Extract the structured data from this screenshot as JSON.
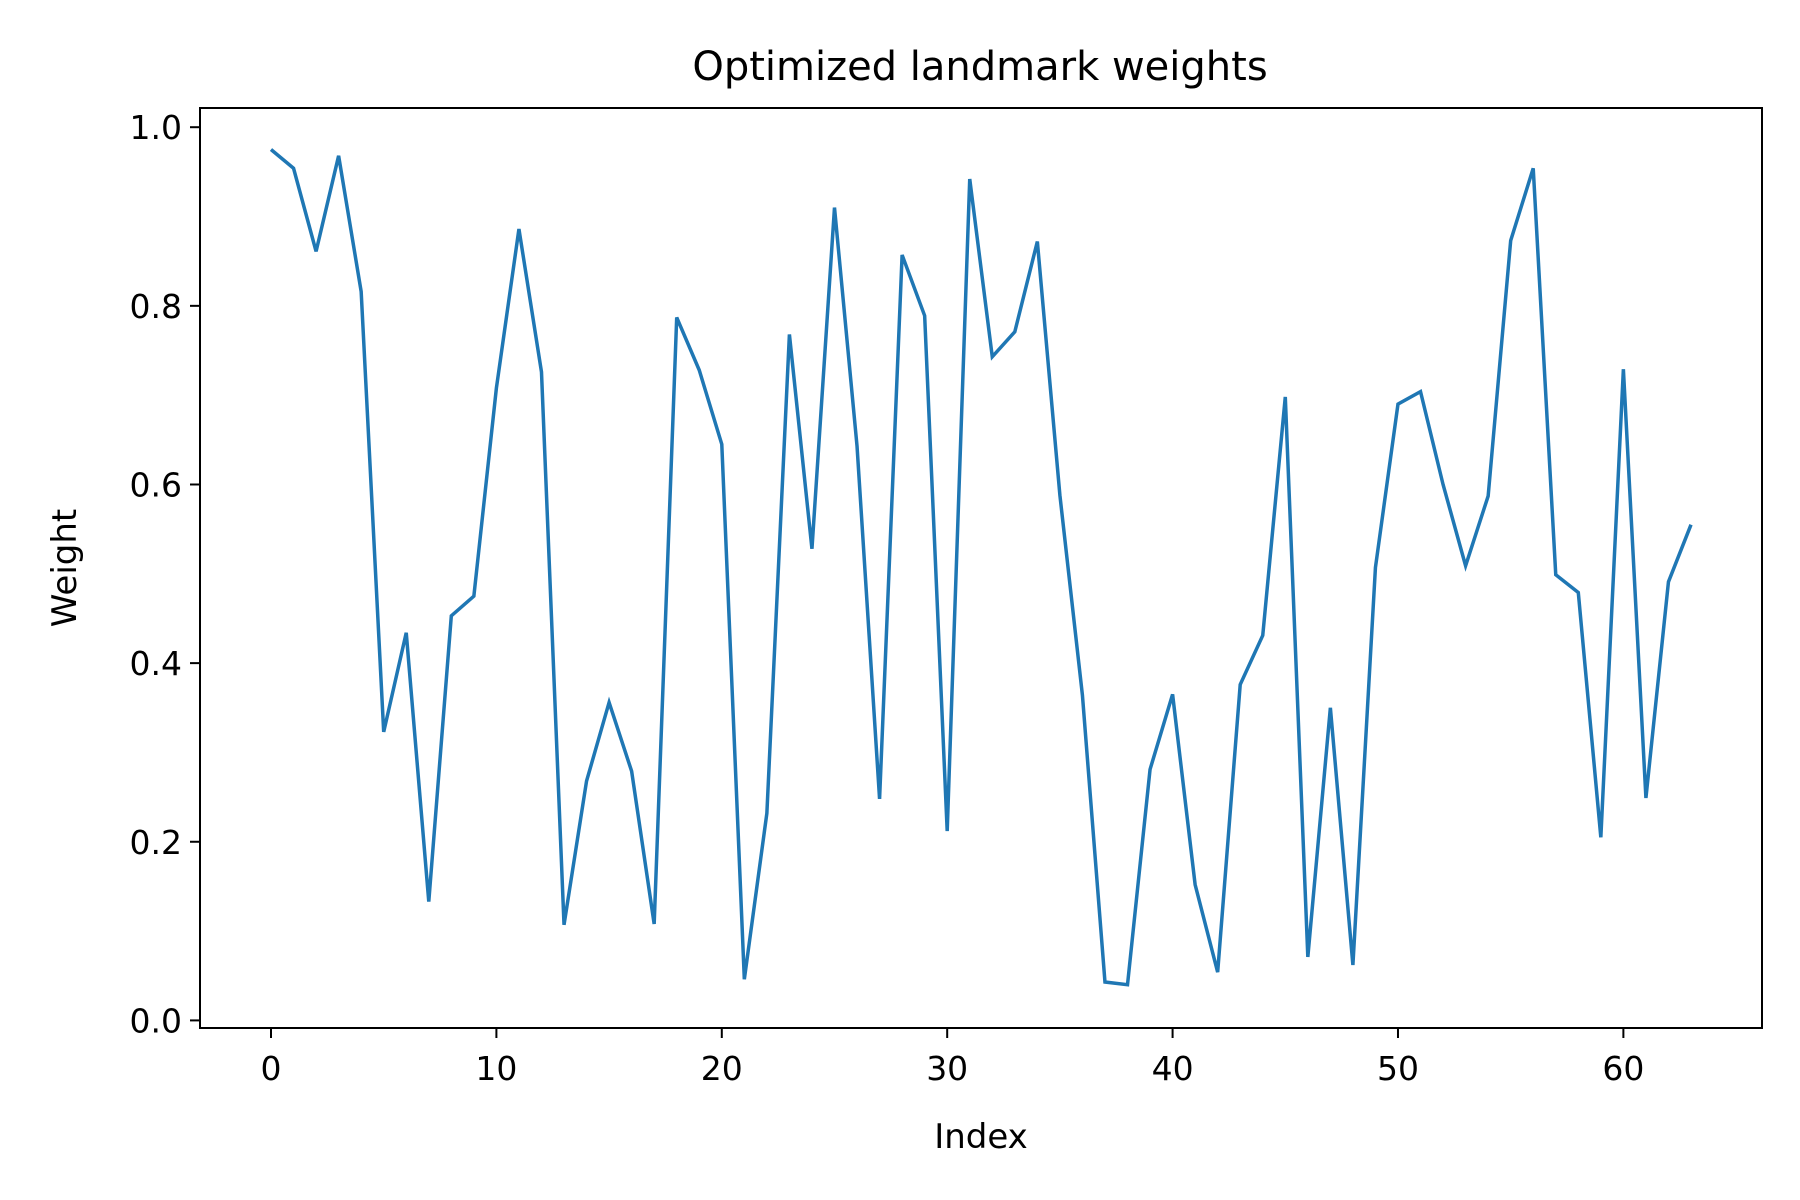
{
  "chart_data": {
    "type": "line",
    "title": "Optimized landmark weights",
    "xlabel": "Index",
    "ylabel": "Weight",
    "xlim": [
      -3.15,
      66.15
    ],
    "ylim": [
      -0.0085,
      1.0215
    ],
    "xticks": [
      0,
      10,
      20,
      30,
      40,
      50,
      60
    ],
    "yticks": [
      0.0,
      0.2,
      0.4,
      0.6,
      0.8,
      1.0
    ],
    "ytick_labels": [
      "0.0",
      "0.2",
      "0.4",
      "0.6",
      "0.8",
      "1.0"
    ],
    "grid": false,
    "line_color": "#1f77b4",
    "series": [
      {
        "x": [
          0,
          1,
          2,
          3,
          4,
          5,
          6,
          7,
          8,
          9,
          10,
          11,
          12,
          13,
          14,
          15,
          16,
          17,
          18,
          19,
          20,
          21,
          22,
          23,
          24,
          25,
          26,
          27,
          28,
          29,
          30,
          31,
          32,
          33,
          34,
          35,
          36,
          37,
          38,
          39,
          40,
          41,
          42,
          43,
          44,
          45,
          46,
          47,
          48,
          49,
          50,
          51,
          52,
          53,
          54,
          55,
          56,
          57,
          58,
          59,
          60,
          61,
          62,
          63
        ],
        "values": [
          0.975,
          0.954,
          0.861,
          0.968,
          0.816,
          0.323,
          0.434,
          0.133,
          0.453,
          0.475,
          0.708,
          0.886,
          0.726,
          0.107,
          0.268,
          0.356,
          0.279,
          0.108,
          0.787,
          0.728,
          0.645,
          0.046,
          0.232,
          0.768,
          0.528,
          0.91,
          0.643,
          0.248,
          0.857,
          0.789,
          0.212,
          0.942,
          0.743,
          0.771,
          0.872,
          0.588,
          0.364,
          0.043,
          0.04,
          0.281,
          0.365,
          0.152,
          0.054,
          0.376,
          0.431,
          0.698,
          0.071,
          0.35,
          0.062,
          0.507,
          0.69,
          0.704,
          0.6,
          0.509,
          0.587,
          0.873,
          0.954,
          0.499,
          0.479,
          0.205,
          0.729,
          0.249,
          0.491,
          0.555
        ]
      }
    ]
  }
}
